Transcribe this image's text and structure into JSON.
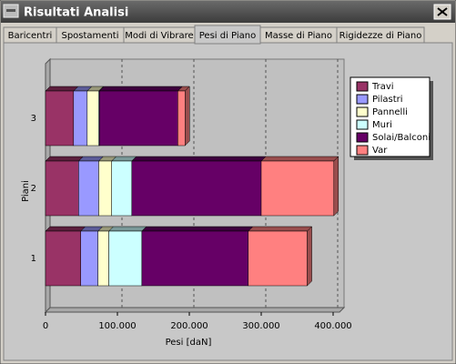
{
  "window": {
    "title": "Risultati Analisi"
  },
  "tabs": [
    "Baricentri",
    "Spostamenti",
    "Modi di Vibrare",
    "Pesi di Piano",
    "Masse di Piano",
    "Rigidezze di Piano"
  ],
  "chart_data": {
    "type": "stacked-bar-3d",
    "orientation": "horizontal",
    "categories": [
      "1",
      "2",
      "3"
    ],
    "y_label": "Piani",
    "x_label": "Pesi [daN]",
    "xlim": [
      0,
      400000
    ],
    "xticks": [
      0,
      {
        "value": 100000,
        "label": "100.000"
      },
      {
        "value": 200000,
        "label": "200.000"
      },
      {
        "value": 300000,
        "label": "300.000"
      },
      {
        "value": 400000,
        "label": "400.000"
      }
    ],
    "grid": true,
    "legend": "top-right",
    "series": [
      {
        "name": "Travi",
        "color": "#993366",
        "values": [
          49000,
          46000,
          39000
        ]
      },
      {
        "name": "Pilastri",
        "color": "#9999ff",
        "values": [
          24000,
          28000,
          19000
        ]
      },
      {
        "name": "Pannelli",
        "color": "#ffffcc",
        "values": [
          15000,
          18000,
          16000
        ]
      },
      {
        "name": "Muri",
        "color": "#ccffff",
        "values": [
          46000,
          28000,
          1000
        ]
      },
      {
        "name": "Solai/Balconi",
        "color": "#660066",
        "values": [
          148000,
          180000,
          109000
        ]
      },
      {
        "name": "Var",
        "color": "#ff8080",
        "values": [
          82000,
          101000,
          10000
        ]
      }
    ]
  }
}
